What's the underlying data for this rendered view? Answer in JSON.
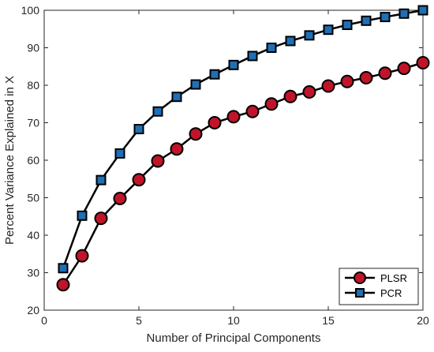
{
  "chart_data": {
    "type": "line",
    "title": "",
    "xlabel": "Number of Principal Components",
    "ylabel": "Percent Variance Explained in X",
    "xlim": [
      0,
      20
    ],
    "ylim": [
      20,
      100
    ],
    "xticks": [
      0,
      5,
      10,
      15,
      20
    ],
    "yticks": [
      20,
      30,
      40,
      50,
      60,
      70,
      80,
      90,
      100
    ],
    "grid": false,
    "legend_position": "bottom-right",
    "x": [
      1,
      2,
      3,
      4,
      5,
      6,
      7,
      8,
      9,
      10,
      11,
      12,
      13,
      14,
      15,
      16,
      17,
      18,
      19,
      20
    ],
    "series": [
      {
        "name": "PLSR",
        "marker": "circle",
        "color": "#c0142a",
        "line_color": "#000000",
        "values": [
          26.8,
          34.5,
          44.5,
          49.8,
          54.8,
          59.8,
          63.0,
          67.0,
          70.0,
          71.6,
          73.0,
          75.0,
          77.0,
          78.2,
          79.8,
          81.0,
          82.0,
          83.2,
          84.5,
          86.0
        ]
      },
      {
        "name": "PCR",
        "marker": "square",
        "color": "#1f6fb5",
        "line_color": "#000000",
        "values": [
          31.2,
          45.2,
          54.7,
          61.8,
          68.3,
          73.0,
          76.9,
          80.2,
          82.9,
          85.4,
          87.8,
          90.0,
          91.8,
          93.3,
          94.8,
          96.1,
          97.2,
          98.2,
          99.1,
          100.0
        ]
      }
    ]
  }
}
